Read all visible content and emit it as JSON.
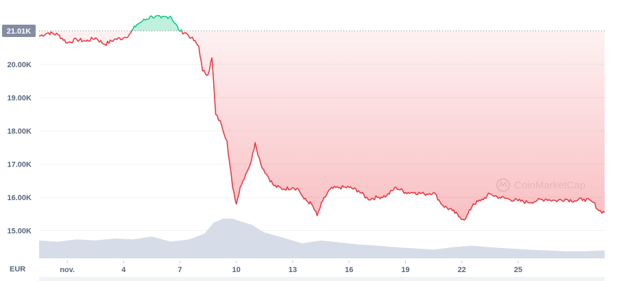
{
  "chart_data": {
    "type": "line",
    "currency": "EUR",
    "current_price_label": "21.01K",
    "current_price": 21010,
    "watermark": "CoinMarketCap",
    "y_ticks": [
      {
        "label": "20.00K",
        "value": 20000
      },
      {
        "label": "19.00K",
        "value": 19000
      },
      {
        "label": "18.00K",
        "value": 18000
      },
      {
        "label": "17.00K",
        "value": 17000
      },
      {
        "label": "16.00K",
        "value": 16000
      },
      {
        "label": "15.00K",
        "value": 15000
      }
    ],
    "ylim": [
      14550,
      21950
    ],
    "x_ticks": [
      {
        "label": "nov.",
        "day": 1
      },
      {
        "label": "4",
        "day": 4
      },
      {
        "label": "7",
        "day": 7
      },
      {
        "label": "10",
        "day": 10
      },
      {
        "label": "13",
        "day": 13
      },
      {
        "label": "16",
        "day": 16
      },
      {
        "label": "19",
        "day": 19
      },
      {
        "label": "22",
        "day": 22
      },
      {
        "label": "25",
        "day": 25
      }
    ],
    "xlim_days": [
      -0.5,
      29.6
    ],
    "series": [
      {
        "points": [
          [
            -0.5,
            20.85
          ],
          [
            0.0,
            20.95
          ],
          [
            0.5,
            20.9
          ],
          [
            1.0,
            20.65
          ],
          [
            1.5,
            20.75
          ],
          [
            2.0,
            20.7
          ],
          [
            2.5,
            20.8
          ],
          [
            3.0,
            20.6
          ],
          [
            3.5,
            20.75
          ],
          [
            4.0,
            20.8
          ],
          [
            4.3,
            20.9
          ],
          [
            4.7,
            21.2
          ],
          [
            5.0,
            21.3
          ],
          [
            5.5,
            21.45
          ],
          [
            6.0,
            21.4
          ],
          [
            6.5,
            21.45
          ],
          [
            7.0,
            21.0
          ],
          [
            7.3,
            20.95
          ],
          [
            7.6,
            20.8
          ],
          [
            8.0,
            20.55
          ],
          [
            8.2,
            19.8
          ],
          [
            8.5,
            19.7
          ],
          [
            8.7,
            20.2
          ],
          [
            8.9,
            18.5
          ],
          [
            9.2,
            18.2
          ],
          [
            9.5,
            17.7
          ],
          [
            9.8,
            16.3
          ],
          [
            10.0,
            15.8
          ],
          [
            10.2,
            16.3
          ],
          [
            10.5,
            16.7
          ],
          [
            10.8,
            17.1
          ],
          [
            11.0,
            17.65
          ],
          [
            11.3,
            17.0
          ],
          [
            11.6,
            16.7
          ],
          [
            12.0,
            16.35
          ],
          [
            12.5,
            16.25
          ],
          [
            13.0,
            16.3
          ],
          [
            13.3,
            16.25
          ],
          [
            13.6,
            15.95
          ],
          [
            14.0,
            15.8
          ],
          [
            14.3,
            15.45
          ],
          [
            14.6,
            15.9
          ],
          [
            15.0,
            16.25
          ],
          [
            15.5,
            16.3
          ],
          [
            16.0,
            16.3
          ],
          [
            16.5,
            16.2
          ],
          [
            17.0,
            15.95
          ],
          [
            17.5,
            16.0
          ],
          [
            18.0,
            16.05
          ],
          [
            18.5,
            16.3
          ],
          [
            19.0,
            16.15
          ],
          [
            19.5,
            16.15
          ],
          [
            20.0,
            16.1
          ],
          [
            20.5,
            16.15
          ],
          [
            21.0,
            15.75
          ],
          [
            21.5,
            15.6
          ],
          [
            21.9,
            15.4
          ],
          [
            22.2,
            15.35
          ],
          [
            22.6,
            15.8
          ],
          [
            23.0,
            15.9
          ],
          [
            23.5,
            16.1
          ],
          [
            24.0,
            16.0
          ],
          [
            24.5,
            15.95
          ],
          [
            25.0,
            15.9
          ],
          [
            25.5,
            15.85
          ],
          [
            26.0,
            15.9
          ],
          [
            26.5,
            15.95
          ],
          [
            27.0,
            15.9
          ],
          [
            27.5,
            15.95
          ],
          [
            28.0,
            15.9
          ],
          [
            28.5,
            15.95
          ],
          [
            29.0,
            15.85
          ],
          [
            29.3,
            15.6
          ],
          [
            29.6,
            15.55
          ]
        ]
      }
    ],
    "volume_profile": [
      [
        -0.5,
        0.45
      ],
      [
        0.5,
        0.42
      ],
      [
        1.5,
        0.48
      ],
      [
        2.5,
        0.45
      ],
      [
        3.5,
        0.5
      ],
      [
        4.5,
        0.48
      ],
      [
        5.5,
        0.55
      ],
      [
        6.5,
        0.42
      ],
      [
        7.5,
        0.48
      ],
      [
        8.3,
        0.62
      ],
      [
        8.8,
        0.9
      ],
      [
        9.3,
        1.0
      ],
      [
        9.8,
        1.0
      ],
      [
        10.3,
        0.92
      ],
      [
        10.8,
        0.85
      ],
      [
        11.5,
        0.65
      ],
      [
        12.5,
        0.52
      ],
      [
        13.5,
        0.38
      ],
      [
        14.5,
        0.45
      ],
      [
        15.5,
        0.4
      ],
      [
        16.5,
        0.35
      ],
      [
        17.5,
        0.32
      ],
      [
        18.5,
        0.28
      ],
      [
        19.5,
        0.25
      ],
      [
        20.5,
        0.22
      ],
      [
        21.5,
        0.28
      ],
      [
        22.5,
        0.32
      ],
      [
        23.5,
        0.28
      ],
      [
        24.5,
        0.25
      ],
      [
        25.5,
        0.22
      ],
      [
        26.5,
        0.2
      ],
      [
        27.5,
        0.18
      ],
      [
        28.5,
        0.18
      ],
      [
        29.6,
        0.2
      ]
    ],
    "colors": {
      "up": "#16c784",
      "down": "#ea3943",
      "grid": "#eff2f5",
      "axis_text": "#58667e",
      "baseline_dots": "#7a7a7a",
      "current_label_bg": "#858ca2",
      "volume": "#cfd6e4"
    },
    "grid": true
  }
}
